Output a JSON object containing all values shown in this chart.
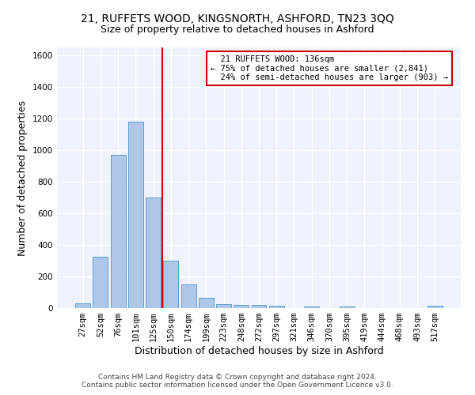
{
  "title_line1": "21, RUFFETS WOOD, KINGSNORTH, ASHFORD, TN23 3QQ",
  "title_line2": "Size of property relative to detached houses in Ashford",
  "xlabel": "Distribution of detached houses by size in Ashford",
  "ylabel": "Number of detached properties",
  "bar_values": [
    30,
    325,
    970,
    1180,
    700,
    300,
    150,
    65,
    25,
    20,
    20,
    15,
    0,
    10,
    0,
    10,
    0,
    0,
    0,
    0,
    15
  ],
  "bar_labels": [
    "27sqm",
    "52sqm",
    "76sqm",
    "101sqm",
    "125sqm",
    "150sqm",
    "174sqm",
    "199sqm",
    "223sqm",
    "248sqm",
    "272sqm",
    "297sqm",
    "321sqm",
    "346sqm",
    "370sqm",
    "395sqm",
    "419sqm",
    "444sqm",
    "468sqm",
    "493sqm",
    "517sqm"
  ],
  "bar_color": "#aec6e8",
  "bar_edge_color": "#5a9fd4",
  "ylim": [
    0,
    1650
  ],
  "yticks": [
    0,
    200,
    400,
    600,
    800,
    1000,
    1200,
    1400,
    1600
  ],
  "vline_x": 4.5,
  "vline_color": "#cc0000",
  "annotation_text": "  21 RUFFETS WOOD: 136sqm\n← 75% of detached houses are smaller (2,841)\n  24% of semi-detached houses are larger (903) →",
  "footer_line1": "Contains HM Land Registry data © Crown copyright and database right 2024.",
  "footer_line2": "Contains public sector information licensed under the Open Government Licence v3.0.",
  "background_color": "#eef2fa",
  "grid_color": "#ffffff",
  "title_fontsize": 10,
  "subtitle_fontsize": 9,
  "axis_label_fontsize": 9,
  "tick_fontsize": 7.5,
  "annotation_fontsize": 7.5,
  "footer_fontsize": 6.5
}
